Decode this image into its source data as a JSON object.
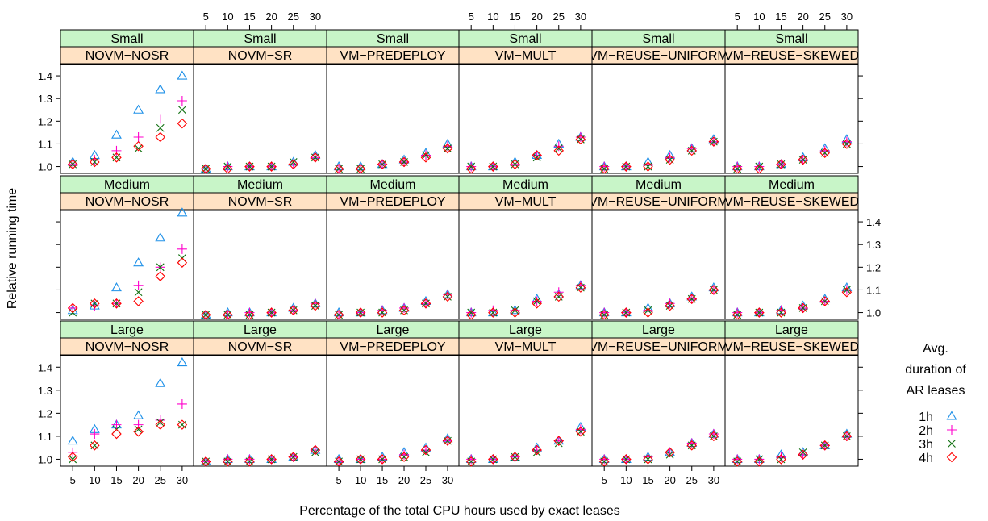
{
  "chart_data": {
    "type": "scatter",
    "xlabel": "Percentage of the total CPU hours used by exact leases",
    "ylabel": "Relative running time",
    "x": [
      5,
      10,
      15,
      20,
      25,
      30
    ],
    "x_tick_labels": [
      "5",
      "10",
      "15",
      "20",
      "25",
      "30"
    ],
    "y_ticks": [
      1.0,
      1.1,
      1.2,
      1.3,
      1.4
    ],
    "y_tick_labels": [
      "1.0",
      "1.1",
      "1.2",
      "1.3",
      "1.4"
    ],
    "ylim": [
      0.97,
      1.45
    ],
    "grid": false,
    "rows": [
      "Small",
      "Medium",
      "Large"
    ],
    "columns": [
      "NOVM−NOSR",
      "NOVM−SR",
      "VM−PREDEPLOY",
      "VM−MULT",
      "VM−REUSE−UNIFORM",
      "VM−REUSE−SKEWED"
    ],
    "strip_colors": {
      "row_strip": "#c8f5c8",
      "column_strip": "#ffe2c4"
    },
    "legend": {
      "title": [
        "Avg.",
        "duration of",
        "AR leases"
      ],
      "position": "right",
      "entries": [
        {
          "label": "1h",
          "color": "#1e90e8",
          "symbol": "triangle"
        },
        {
          "label": "2h",
          "color": "#ff00cc",
          "symbol": "plus"
        },
        {
          "label": "3h",
          "color": "#107010",
          "symbol": "cross"
        },
        {
          "label": "4h",
          "color": "#ff0000",
          "symbol": "diamond"
        }
      ]
    },
    "panels": [
      {
        "row": "Small",
        "column": "NOVM−NOSR",
        "series": [
          {
            "name": "1h",
            "values": [
              1.02,
              1.05,
              1.14,
              1.25,
              1.34,
              1.4
            ]
          },
          {
            "name": "2h",
            "values": [
              1.01,
              1.03,
              1.07,
              1.13,
              1.21,
              1.29
            ]
          },
          {
            "name": "3h",
            "values": [
              1.01,
              1.02,
              1.04,
              1.08,
              1.17,
              1.25
            ]
          },
          {
            "name": "4h",
            "values": [
              1.01,
              1.02,
              1.04,
              1.09,
              1.13,
              1.19
            ]
          }
        ]
      },
      {
        "row": "Small",
        "column": "NOVM−SR",
        "series": [
          {
            "name": "1h",
            "values": [
              0.99,
              1.0,
              1.0,
              1.0,
              1.02,
              1.05
            ]
          },
          {
            "name": "2h",
            "values": [
              0.99,
              1.0,
              1.0,
              1.0,
              1.01,
              1.04
            ]
          },
          {
            "name": "3h",
            "values": [
              0.99,
              1.0,
              1.0,
              1.0,
              1.02,
              1.04
            ]
          },
          {
            "name": "4h",
            "values": [
              0.99,
              0.99,
              1.0,
              1.0,
              1.01,
              1.04
            ]
          }
        ]
      },
      {
        "row": "Small",
        "column": "VM−PREDEPLOY",
        "series": [
          {
            "name": "1h",
            "values": [
              1.0,
              1.0,
              1.01,
              1.03,
              1.06,
              1.1
            ]
          },
          {
            "name": "2h",
            "values": [
              0.99,
              0.99,
              1.01,
              1.02,
              1.05,
              1.09
            ]
          },
          {
            "name": "3h",
            "values": [
              0.99,
              0.99,
              1.01,
              1.02,
              1.05,
              1.08
            ]
          },
          {
            "name": "4h",
            "values": [
              0.99,
              0.99,
              1.01,
              1.02,
              1.04,
              1.08
            ]
          }
        ]
      },
      {
        "row": "Small",
        "column": "VM−MULT",
        "series": [
          {
            "name": "1h",
            "values": [
              1.0,
              1.0,
              1.02,
              1.05,
              1.1,
              1.13
            ]
          },
          {
            "name": "2h",
            "values": [
              1.0,
              1.0,
              1.01,
              1.05,
              1.09,
              1.13
            ]
          },
          {
            "name": "3h",
            "values": [
              1.0,
              1.0,
              1.01,
              1.04,
              1.08,
              1.12
            ]
          },
          {
            "name": "4h",
            "values": [
              0.99,
              1.0,
              1.01,
              1.05,
              1.07,
              1.12
            ]
          }
        ]
      },
      {
        "row": "Small",
        "column": "VM−REUSE−UNIFORM",
        "series": [
          {
            "name": "1h",
            "values": [
              1.0,
              1.0,
              1.02,
              1.05,
              1.08,
              1.12
            ]
          },
          {
            "name": "2h",
            "values": [
              1.0,
              1.0,
              1.01,
              1.04,
              1.08,
              1.11
            ]
          },
          {
            "name": "3h",
            "values": [
              0.99,
              1.0,
              1.0,
              1.03,
              1.07,
              1.11
            ]
          },
          {
            "name": "4h",
            "values": [
              0.99,
              1.0,
              1.0,
              1.03,
              1.07,
              1.11
            ]
          }
        ]
      },
      {
        "row": "Small",
        "column": "VM−REUSE−SKEWED",
        "series": [
          {
            "name": "1h",
            "values": [
              1.0,
              1.0,
              1.01,
              1.04,
              1.08,
              1.12
            ]
          },
          {
            "name": "2h",
            "values": [
              1.0,
              1.0,
              1.01,
              1.03,
              1.07,
              1.11
            ]
          },
          {
            "name": "3h",
            "values": [
              0.99,
              1.0,
              1.01,
              1.03,
              1.06,
              1.1
            ]
          },
          {
            "name": "4h",
            "values": [
              0.99,
              0.99,
              1.01,
              1.03,
              1.06,
              1.1
            ]
          }
        ]
      },
      {
        "row": "Medium",
        "column": "NOVM−NOSR",
        "series": [
          {
            "name": "1h",
            "values": [
              1.01,
              1.03,
              1.11,
              1.22,
              1.33,
              1.44
            ]
          },
          {
            "name": "2h",
            "values": [
              1.02,
              1.03,
              1.04,
              1.12,
              1.2,
              1.28
            ]
          },
          {
            "name": "3h",
            "values": [
              1.0,
              1.04,
              1.04,
              1.09,
              1.2,
              1.24
            ]
          },
          {
            "name": "4h",
            "values": [
              1.02,
              1.04,
              1.04,
              1.05,
              1.16,
              1.22
            ]
          }
        ]
      },
      {
        "row": "Medium",
        "column": "NOVM−SR",
        "series": [
          {
            "name": "1h",
            "values": [
              0.99,
              1.0,
              1.0,
              1.0,
              1.02,
              1.04
            ]
          },
          {
            "name": "2h",
            "values": [
              0.99,
              0.99,
              1.0,
              1.0,
              1.01,
              1.04
            ]
          },
          {
            "name": "3h",
            "values": [
              0.99,
              0.99,
              0.99,
              1.0,
              1.01,
              1.03
            ]
          },
          {
            "name": "4h",
            "values": [
              0.99,
              0.99,
              0.99,
              1.0,
              1.01,
              1.03
            ]
          }
        ]
      },
      {
        "row": "Medium",
        "column": "VM−PREDEPLOY",
        "series": [
          {
            "name": "1h",
            "values": [
              1.0,
              1.0,
              1.01,
              1.02,
              1.05,
              1.08
            ]
          },
          {
            "name": "2h",
            "values": [
              0.99,
              1.0,
              1.01,
              1.02,
              1.04,
              1.08
            ]
          },
          {
            "name": "3h",
            "values": [
              0.99,
              1.0,
              1.0,
              1.01,
              1.04,
              1.07
            ]
          },
          {
            "name": "4h",
            "values": [
              0.99,
              1.0,
              1.0,
              1.01,
              1.04,
              1.07
            ]
          }
        ]
      },
      {
        "row": "Medium",
        "column": "VM−MULT",
        "series": [
          {
            "name": "1h",
            "values": [
              1.0,
              1.0,
              1.01,
              1.06,
              1.08,
              1.12
            ]
          },
          {
            "name": "2h",
            "values": [
              1.0,
              1.01,
              1.01,
              1.05,
              1.09,
              1.12
            ]
          },
          {
            "name": "3h",
            "values": [
              1.0,
              1.0,
              1.01,
              1.05,
              1.07,
              1.11
            ]
          },
          {
            "name": "4h",
            "values": [
              0.99,
              1.0,
              1.0,
              1.04,
              1.07,
              1.11
            ]
          }
        ]
      },
      {
        "row": "Medium",
        "column": "VM−REUSE−UNIFORM",
        "series": [
          {
            "name": "1h",
            "values": [
              1.0,
              1.0,
              1.02,
              1.04,
              1.07,
              1.11
            ]
          },
          {
            "name": "2h",
            "values": [
              1.0,
              1.0,
              1.01,
              1.04,
              1.06,
              1.1
            ]
          },
          {
            "name": "3h",
            "values": [
              0.99,
              1.0,
              1.01,
              1.03,
              1.06,
              1.1
            ]
          },
          {
            "name": "4h",
            "values": [
              0.99,
              1.0,
              1.0,
              1.03,
              1.06,
              1.1
            ]
          }
        ]
      },
      {
        "row": "Medium",
        "column": "VM−REUSE−SKEWED",
        "series": [
          {
            "name": "1h",
            "values": [
              1.0,
              1.0,
              1.01,
              1.03,
              1.06,
              1.11
            ]
          },
          {
            "name": "2h",
            "values": [
              1.0,
              1.0,
              1.01,
              1.02,
              1.05,
              1.1
            ]
          },
          {
            "name": "3h",
            "values": [
              0.99,
              1.0,
              1.0,
              1.02,
              1.05,
              1.1
            ]
          },
          {
            "name": "4h",
            "values": [
              0.99,
              1.0,
              1.0,
              1.02,
              1.05,
              1.09
            ]
          }
        ]
      },
      {
        "row": "Large",
        "column": "NOVM−NOSR",
        "series": [
          {
            "name": "1h",
            "values": [
              1.08,
              1.13,
              1.15,
              1.19,
              1.33,
              1.42
            ]
          },
          {
            "name": "2h",
            "values": [
              1.03,
              1.11,
              1.15,
              1.15,
              1.17,
              1.24
            ]
          },
          {
            "name": "3h",
            "values": [
              1.0,
              1.06,
              1.13,
              1.13,
              1.16,
              1.15
            ]
          },
          {
            "name": "4h",
            "values": [
              1.01,
              1.06,
              1.11,
              1.12,
              1.15,
              1.15
            ]
          }
        ]
      },
      {
        "row": "Large",
        "column": "NOVM−SR",
        "series": [
          {
            "name": "1h",
            "values": [
              0.99,
              1.0,
              1.0,
              1.0,
              1.01,
              1.04
            ]
          },
          {
            "name": "2h",
            "values": [
              0.99,
              1.0,
              1.0,
              1.0,
              1.01,
              1.04
            ]
          },
          {
            "name": "3h",
            "values": [
              0.99,
              0.99,
              0.99,
              1.0,
              1.01,
              1.03
            ]
          },
          {
            "name": "4h",
            "values": [
              0.99,
              0.99,
              0.99,
              1.0,
              1.01,
              1.04
            ]
          }
        ]
      },
      {
        "row": "Large",
        "column": "VM−PREDEPLOY",
        "series": [
          {
            "name": "1h",
            "values": [
              1.0,
              1.0,
              1.01,
              1.03,
              1.05,
              1.09
            ]
          },
          {
            "name": "2h",
            "values": [
              0.99,
              1.0,
              1.0,
              1.02,
              1.04,
              1.08
            ]
          },
          {
            "name": "3h",
            "values": [
              0.99,
              1.0,
              1.0,
              1.01,
              1.03,
              1.08
            ]
          },
          {
            "name": "4h",
            "values": [
              0.99,
              1.0,
              1.0,
              1.01,
              1.04,
              1.08
            ]
          }
        ]
      },
      {
        "row": "Large",
        "column": "VM−MULT",
        "series": [
          {
            "name": "1h",
            "values": [
              1.0,
              1.0,
              1.01,
              1.05,
              1.08,
              1.14
            ]
          },
          {
            "name": "2h",
            "values": [
              1.0,
              1.0,
              1.01,
              1.04,
              1.08,
              1.13
            ]
          },
          {
            "name": "3h",
            "values": [
              0.99,
              1.0,
              1.01,
              1.03,
              1.07,
              1.12
            ]
          },
          {
            "name": "4h",
            "values": [
              0.99,
              1.0,
              1.01,
              1.04,
              1.08,
              1.12
            ]
          }
        ]
      },
      {
        "row": "Large",
        "column": "VM−REUSE−UNIFORM",
        "series": [
          {
            "name": "1h",
            "values": [
              1.0,
              1.0,
              1.01,
              1.03,
              1.07,
              1.11
            ]
          },
          {
            "name": "2h",
            "values": [
              1.0,
              1.0,
              1.01,
              1.03,
              1.07,
              1.11
            ]
          },
          {
            "name": "3h",
            "values": [
              0.99,
              1.0,
              1.0,
              1.02,
              1.06,
              1.1
            ]
          },
          {
            "name": "4h",
            "values": [
              0.99,
              1.0,
              1.0,
              1.03,
              1.06,
              1.1
            ]
          }
        ]
      },
      {
        "row": "Large",
        "column": "VM−REUSE−SKEWED",
        "series": [
          {
            "name": "1h",
            "values": [
              1.0,
              1.0,
              1.02,
              1.03,
              1.06,
              1.11
            ]
          },
          {
            "name": "2h",
            "values": [
              1.0,
              1.0,
              1.01,
              1.02,
              1.06,
              1.1
            ]
          },
          {
            "name": "3h",
            "values": [
              0.99,
              1.0,
              1.0,
              1.03,
              1.06,
              1.1
            ]
          },
          {
            "name": "4h",
            "values": [
              0.99,
              0.99,
              1.0,
              1.02,
              1.06,
              1.1
            ]
          }
        ]
      }
    ]
  }
}
